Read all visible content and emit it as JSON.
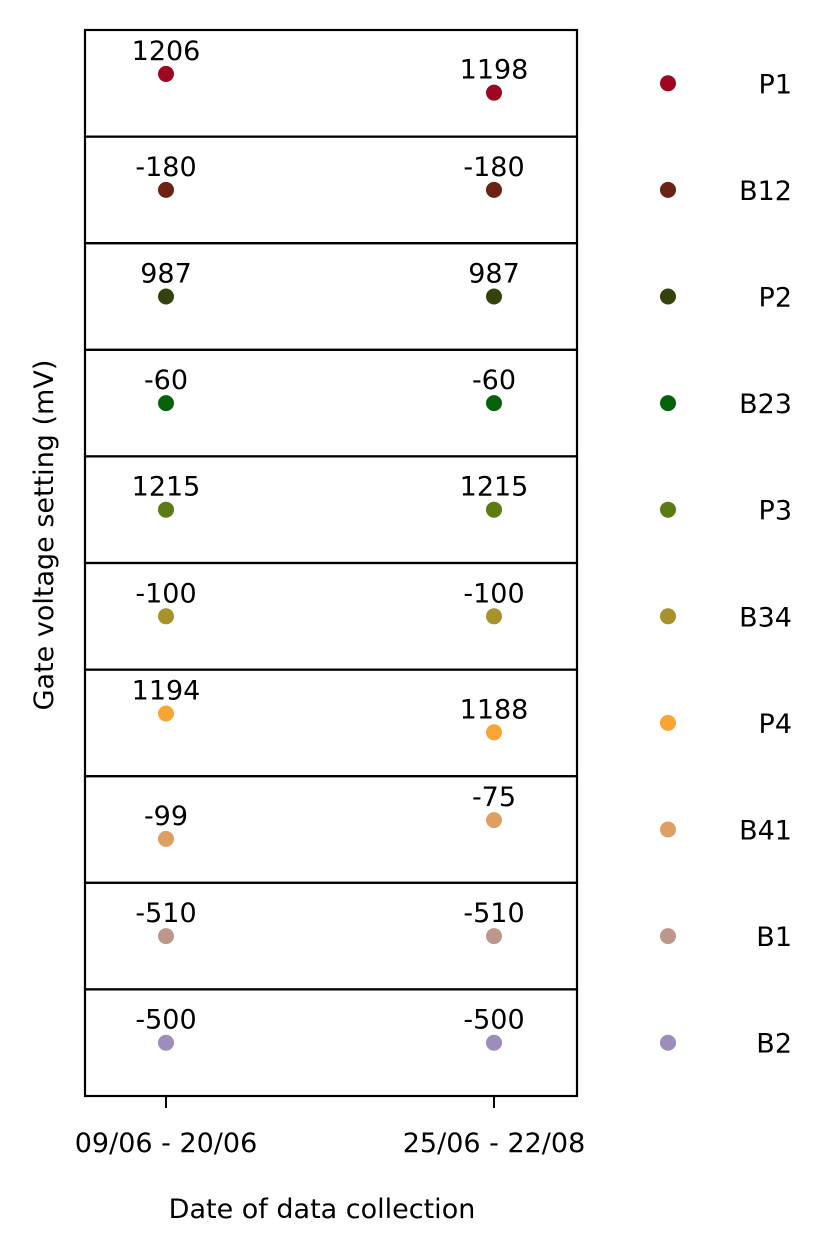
{
  "chart_data": {
    "type": "scatter",
    "layout": "stacked-panels",
    "xlabel": "Date of data collection",
    "ylabel": "Gate voltage setting (mV)",
    "x_categories": [
      "09/06 - 20/06",
      "25/06 - 22/08"
    ],
    "legend_position": "right",
    "grid": false,
    "series": [
      {
        "name": "P1",
        "color": "#9e0722",
        "values": [
          1206,
          1198
        ],
        "labels": [
          "1206",
          "1198"
        ]
      },
      {
        "name": "B12",
        "color": "#6b2114",
        "values": [
          -180,
          -180
        ],
        "labels": [
          "-180",
          "-180"
        ]
      },
      {
        "name": "P2",
        "color": "#34430d",
        "values": [
          987,
          987
        ],
        "labels": [
          "987",
          "987"
        ]
      },
      {
        "name": "B23",
        "color": "#05620b",
        "values": [
          -60,
          -60
        ],
        "labels": [
          "-60",
          "-60"
        ]
      },
      {
        "name": "P3",
        "color": "#5b7c15",
        "values": [
          1215,
          1215
        ],
        "labels": [
          "1215",
          "1215"
        ]
      },
      {
        "name": "B34",
        "color": "#a8922b",
        "values": [
          -100,
          -100
        ],
        "labels": [
          "-100",
          "-100"
        ]
      },
      {
        "name": "P4",
        "color": "#f9a535",
        "values": [
          1194,
          1188
        ],
        "labels": [
          "1194",
          "1188"
        ]
      },
      {
        "name": "B41",
        "color": "#dea062",
        "values": [
          -99,
          -75
        ],
        "labels": [
          "-99",
          "-75"
        ]
      },
      {
        "name": "B1",
        "color": "#bd978c",
        "values": [
          -510,
          -510
        ],
        "labels": [
          "-510",
          "-510"
        ]
      },
      {
        "name": "B2",
        "color": "#9c8dba",
        "values": [
          -500,
          -500
        ],
        "labels": [
          "-500",
          "-500"
        ]
      }
    ]
  }
}
